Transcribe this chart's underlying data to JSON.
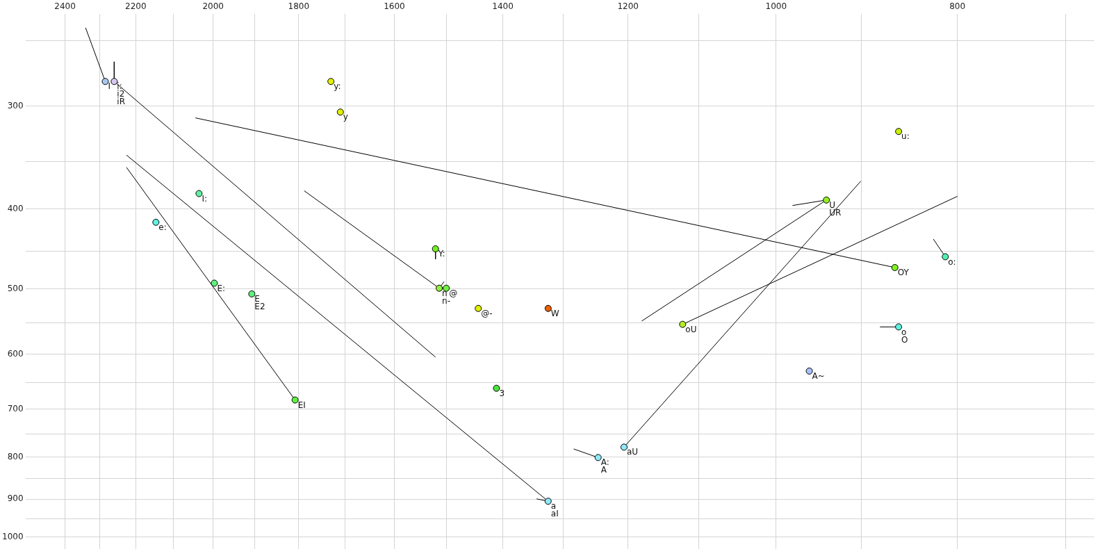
{
  "chart_data": {
    "type": "scatter",
    "log": "xy",
    "grid": true,
    "marker": "circle",
    "xlim": [
      2520,
      676
    ],
    "ylim": [
      1034,
      232
    ],
    "xticks": [
      2400,
      {
        "value": 2300,
        "label": null
      },
      2200,
      {
        "value": 2100,
        "label": null
      },
      2000,
      {
        "value": 1900,
        "label": null
      },
      1800,
      {
        "value": 1700,
        "label": null
      },
      1600,
      {
        "value": 1500,
        "label": null
      },
      1400,
      {
        "value": 1300,
        "label": null
      },
      1200,
      {
        "value": 1100,
        "label": null
      },
      1000,
      {
        "value": 900,
        "label": null
      },
      800,
      {
        "value": 700,
        "label": null
      }
    ],
    "yticks": [
      {
        "value": 250,
        "label": null
      },
      300,
      {
        "value": 350,
        "label": null
      },
      400,
      {
        "value": 450,
        "label": null
      },
      500,
      {
        "value": 550,
        "label": null
      },
      600,
      {
        "value": 650,
        "label": null
      },
      700,
      {
        "value": 750,
        "label": null
      },
      800,
      {
        "value": 850,
        "label": null
      },
      900,
      {
        "value": 950,
        "label": null
      },
      1000
    ],
    "series": [
      {
        "type": "line",
        "marker": "none",
        "color": "#000000",
        "x": [
          2340,
          2284
        ],
        "values": [
          241,
          280
        ]
      },
      {
        "type": "line",
        "marker": "none",
        "color": "#000000",
        "x": [
          2259,
          2259
        ],
        "values": [
          265,
          280
        ]
      },
      {
        "type": "line",
        "marker": "none",
        "color": "#000000",
        "x": [
          2259,
          1521
        ],
        "values": [
          280,
          605
        ]
      },
      {
        "type": "line",
        "marker": "none",
        "color": "#000000",
        "x": [
          2044,
          864
        ],
        "values": [
          310,
          471
        ]
      },
      {
        "type": "line",
        "marker": "none",
        "color": "#000000",
        "x": [
          2225,
          1324
        ],
        "values": [
          344,
          905
        ]
      },
      {
        "type": "line",
        "marker": "none",
        "color": "#000000",
        "x": [
          2225,
          1808
        ],
        "values": [
          356,
          682
        ]
      },
      {
        "type": "line",
        "marker": "none",
        "color": "#000000",
        "x": [
          1788,
          1514
        ],
        "values": [
          380,
          499
        ]
      },
      {
        "type": "line",
        "marker": "none",
        "color": "#000000",
        "x": [
          1514,
          1505
        ],
        "values": [
          499,
          490
        ]
      },
      {
        "type": "line",
        "marker": "none",
        "color": "#000000",
        "x": [
          1521,
          1521
        ],
        "values": [
          447,
          460
        ]
      },
      {
        "type": "line",
        "marker": "none",
        "color": "#000000",
        "x": [
          1343,
          1324
        ],
        "values": [
          899,
          905
        ]
      },
      {
        "type": "line",
        "marker": "none",
        "color": "#000000",
        "x": [
          1283,
          1245
        ],
        "values": [
          782,
          801
        ]
      },
      {
        "type": "line",
        "marker": "none",
        "color": "#000000",
        "x": [
          1206,
          901
        ],
        "values": [
          778,
          370
        ]
      },
      {
        "type": "line",
        "marker": "none",
        "color": "#000000",
        "x": [
          1122,
          800
        ],
        "values": [
          552,
          386
        ]
      },
      {
        "type": "line",
        "marker": "none",
        "color": "#000000",
        "x": [
          980,
          940
        ],
        "values": [
          396,
          390
        ]
      },
      {
        "type": "line",
        "marker": "none",
        "color": "#000000",
        "x": [
          940,
          1180
        ],
        "values": [
          390,
          547
        ]
      },
      {
        "type": "line",
        "marker": "none",
        "color": "#000000",
        "x": [
          824,
          812
        ],
        "values": [
          435,
          457
        ]
      },
      {
        "type": "line",
        "marker": "none",
        "color": "#000000",
        "x": [
          880,
          860
        ],
        "values": [
          556,
          556
        ]
      },
      {
        "x": [
          2284,
          2259,
          1730,
          1710,
          2035,
          2146,
          1997,
          1907,
          1808,
          1521,
          1514,
          1501,
          1443,
          1324,
          1411,
          1324,
          1245,
          1206,
          1122,
          940,
          860,
          864,
          812,
          860,
          960
        ],
        "values": [
          280,
          280,
          280,
          305,
          383,
          415,
          492,
          507,
          682,
          447,
          499,
          499,
          528,
          528,
          660,
          905,
          801,
          778,
          552,
          390,
          322,
          471,
          457,
          556,
          629
        ],
        "colors": [
          "#a8c8f0",
          "#d8c8f0",
          "#e0f000",
          "#e0f000",
          "#60f0a0",
          "#60f0e0",
          "#60f080",
          "#60f080",
          "#60f040",
          "#70f020",
          "#90f040",
          "#70f040",
          "#e0f000",
          "#f06000",
          "#50e040",
          "#90e8f8",
          "#90e8f8",
          "#90e8f8",
          "#b0f020",
          "#90f020",
          "#c8f000",
          "#80f020",
          "#50f0b0",
          "#60f0e0",
          "#a8c0f8"
        ]
      }
    ],
    "annotations": [
      {
        "text": "I",
        "x": 2284,
        "y": 280
      },
      {
        "text": "i:",
        "x": 2259,
        "y": 280
      },
      {
        "text": "i2",
        "x": 2259,
        "y": 280
      },
      {
        "text": "iR",
        "x": 2259,
        "y": 280
      },
      {
        "text": "y:",
        "x": 1730,
        "y": 280
      },
      {
        "text": "y",
        "x": 1710,
        "y": 305
      },
      {
        "text": "I:",
        "x": 2035,
        "y": 383
      },
      {
        "text": "e:",
        "x": 2146,
        "y": 415
      },
      {
        "text": "E:",
        "x": 1997,
        "y": 492
      },
      {
        "text": "E",
        "x": 1907,
        "y": 507
      },
      {
        "text": "E2",
        "x": 1907,
        "y": 507
      },
      {
        "text": "EI",
        "x": 1808,
        "y": 682
      },
      {
        "text": "Y:",
        "x": 1521,
        "y": 447
      },
      {
        "text": "n",
        "x": 1514,
        "y": 499
      },
      {
        "text": "n-",
        "x": 1514,
        "y": 499
      },
      {
        "text": "@",
        "x": 1501,
        "y": 499
      },
      {
        "text": "@-",
        "x": 1443,
        "y": 528
      },
      {
        "text": "W",
        "x": 1324,
        "y": 528
      },
      {
        "text": "3",
        "x": 1411,
        "y": 660
      },
      {
        "text": "a",
        "x": 1324,
        "y": 905
      },
      {
        "text": "aI",
        "x": 1324,
        "y": 905
      },
      {
        "text": "A:",
        "x": 1245,
        "y": 801
      },
      {
        "text": "A",
        "x": 1245,
        "y": 801
      },
      {
        "text": "aU",
        "x": 1206,
        "y": 778
      },
      {
        "text": "oU",
        "x": 1122,
        "y": 552
      },
      {
        "text": "U",
        "x": 940,
        "y": 390
      },
      {
        "text": "UR",
        "x": 940,
        "y": 390
      },
      {
        "text": "u:",
        "x": 860,
        "y": 322
      },
      {
        "text": "OY",
        "x": 864,
        "y": 471
      },
      {
        "text": "o:",
        "x": 812,
        "y": 457
      },
      {
        "text": "o",
        "x": 860,
        "y": 556
      },
      {
        "text": "O",
        "x": 860,
        "y": 556
      },
      {
        "text": "A~",
        "x": 960,
        "y": 629
      }
    ]
  }
}
